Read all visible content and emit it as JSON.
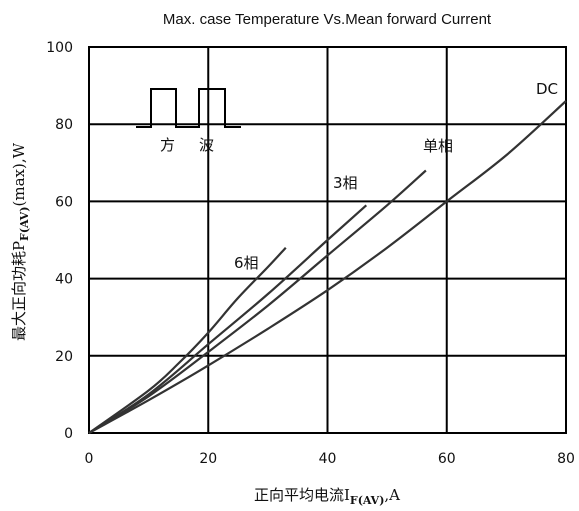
{
  "chart_data": {
    "type": "line",
    "title": "Max. case Temperature Vs.Mean forward Current",
    "xlabel": {
      "main": "正向平均电流I",
      "sub": "F(AV)",
      "tail": ",A"
    },
    "ylabel": {
      "main": "最大正向功耗P",
      "sub": "F(AV)",
      "tail": "(max),W"
    },
    "xlim": [
      0,
      80
    ],
    "ylim": [
      0,
      100
    ],
    "xticks": [
      "0",
      "20",
      "40",
      "60",
      "80"
    ],
    "yticks": [
      "0",
      "20",
      "40",
      "60",
      "80",
      "100"
    ],
    "grid": true,
    "series": [
      {
        "name": "6相",
        "x": [
          0,
          10,
          15,
          20,
          25,
          30,
          33
        ],
        "y": [
          0,
          11,
          18,
          26,
          35,
          43,
          48
        ]
      },
      {
        "name": "3相",
        "x": [
          0,
          10,
          20,
          30,
          40,
          46.5
        ],
        "y": [
          0,
          10,
          23,
          36,
          50,
          59
        ]
      },
      {
        "name": "单相",
        "x": [
          0,
          10,
          20,
          30,
          40,
          50,
          56.5
        ],
        "y": [
          0,
          9.5,
          21,
          33,
          46,
          59,
          68
        ]
      },
      {
        "name": "DC",
        "x": [
          0,
          10,
          20,
          30,
          40,
          50,
          60,
          70,
          80
        ],
        "y": [
          0,
          8.5,
          17.5,
          27,
          37,
          48,
          60,
          72,
          86
        ]
      }
    ],
    "inset": {
      "label_1": "方",
      "label_2": "波"
    }
  }
}
